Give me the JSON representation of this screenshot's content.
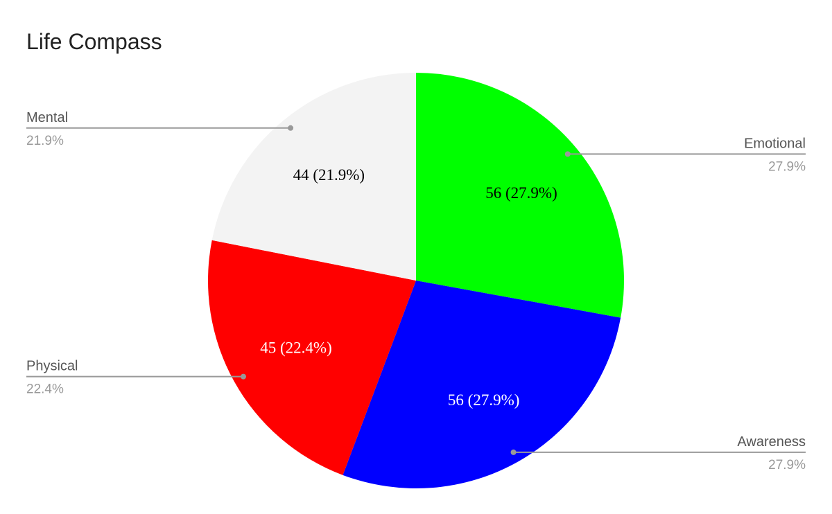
{
  "chart_data": {
    "type": "pie",
    "title": "Life Compass",
    "categories": [
      "Emotional",
      "Awareness",
      "Physical",
      "Mental"
    ],
    "values": [
      56,
      56,
      45,
      44
    ],
    "value_labels": [
      "56 (27.9%)",
      "56 (27.9%)",
      "45 (22.4%)",
      "44 (21.9%)"
    ],
    "percent_labels": [
      "27.9%",
      "27.9%",
      "22.4%",
      "21.9%"
    ],
    "colors": [
      "#00ff00",
      "#0000ff",
      "#ff0000",
      "#f3f3f3"
    ]
  }
}
